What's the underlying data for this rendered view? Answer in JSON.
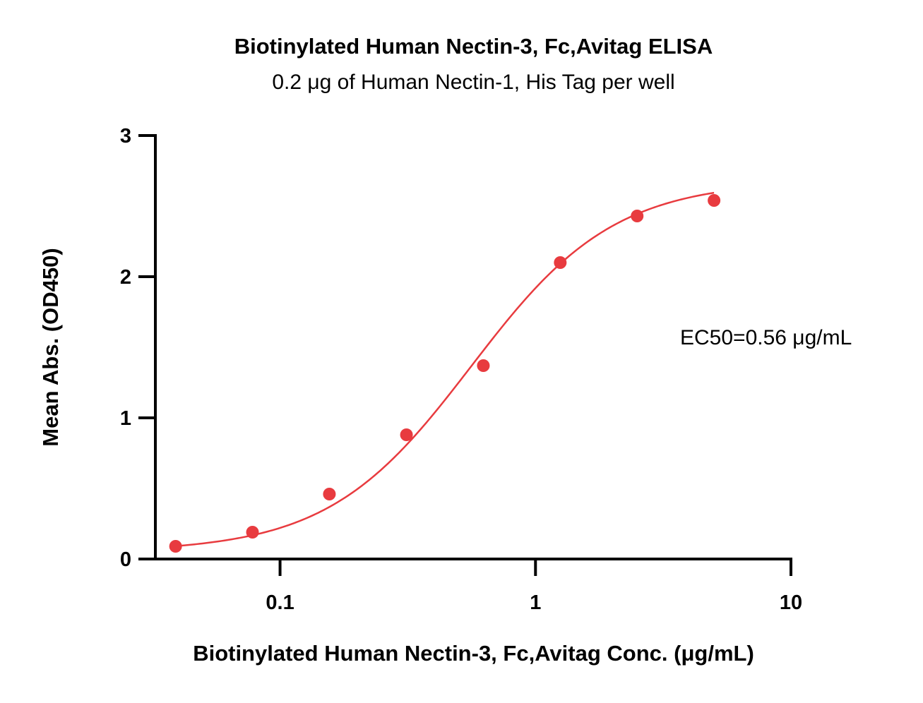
{
  "chart_data": {
    "type": "scatter",
    "title": "Biotinylated Human Nectin-3, Fc,Avitag ELISA",
    "subtitle": "0.2 μg of Human Nectin-1, His Tag per well",
    "xlabel": "Biotinylated Human Nectin-3, Fc,Avitag Conc. (μg/mL)",
    "ylabel": "Mean Abs. (OD450)",
    "x_scale": "log",
    "xlim": [
      0.0325,
      10
    ],
    "ylim": [
      0,
      3
    ],
    "x_ticks": [
      0.1,
      1,
      10
    ],
    "x_tick_labels": [
      "0.1",
      "1",
      "10"
    ],
    "y_ticks": [
      0,
      1,
      2,
      3
    ],
    "y_tick_labels": [
      "0",
      "1",
      "2",
      "3"
    ],
    "grid": false,
    "series": [
      {
        "color": "#e83b3f",
        "x": [
          0.039,
          0.078,
          0.156,
          0.3125,
          0.625,
          1.25,
          2.5,
          5
        ],
        "y": [
          0.09,
          0.19,
          0.46,
          0.88,
          1.37,
          2.1,
          2.43,
          2.54
        ]
      }
    ],
    "fit_curve": {
      "model": "4PL",
      "bottom": 0.05,
      "top": 2.68,
      "ec50": 0.56,
      "hill": 1.55,
      "x_range": [
        0.039,
        5
      ],
      "color": "#e83b3f"
    },
    "annotations": [
      "EC50=0.56 μg/mL"
    ]
  }
}
